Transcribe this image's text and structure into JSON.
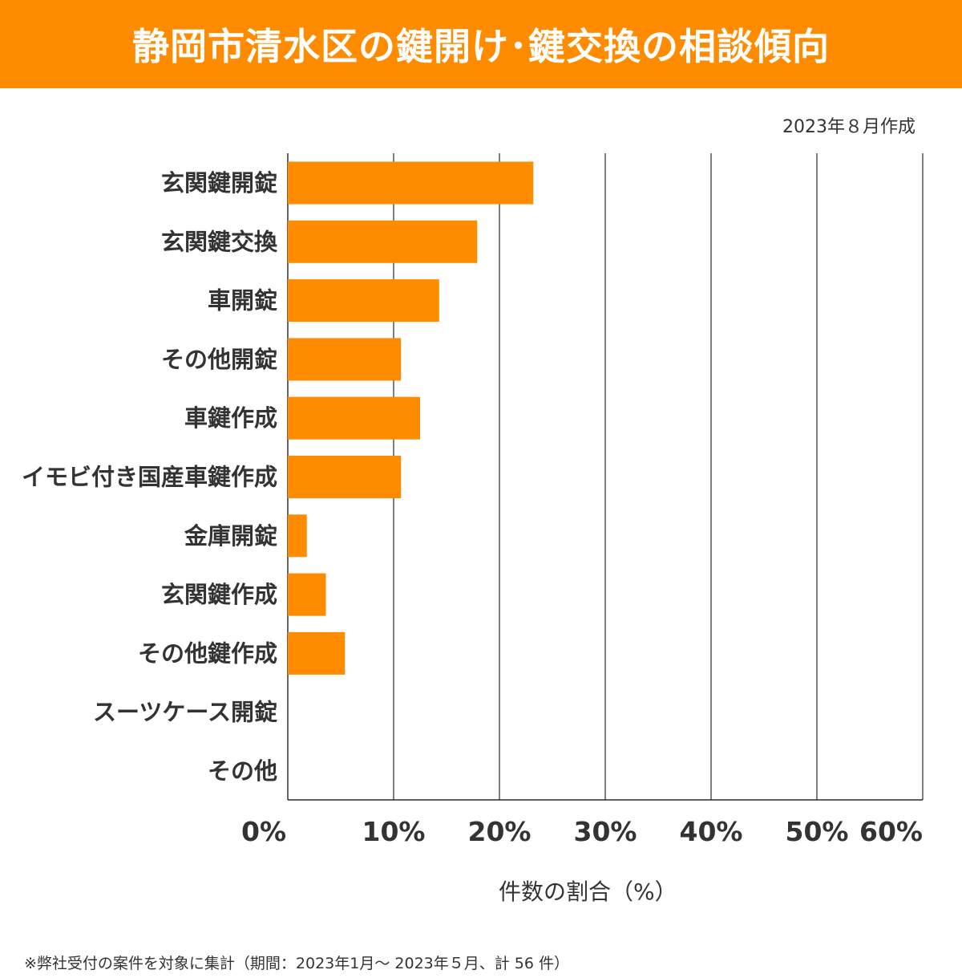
{
  "header": {
    "title": "静岡市清水区の鍵開け･鍵交換の相談傾向",
    "created_note": "2023年８月作成"
  },
  "footnote": "※弊社受付の案件を対象に集計（期間：2023年1月～ 2023年５月、計 56 件）",
  "colors": {
    "bar": "#ff8c00",
    "header_bg": "#ff8c00",
    "header_text": "#ffffff",
    "text": "#333333",
    "grid": "#000000"
  },
  "chart_data": {
    "type": "bar",
    "orientation": "horizontal",
    "title": "静岡市清水区の鍵開け･鍵交換の相談傾向",
    "xlabel": "件数の割合（%）",
    "ylabel": "",
    "xlim": [
      0,
      60
    ],
    "xticks": [
      0,
      10,
      20,
      30,
      40,
      50,
      60
    ],
    "xtick_labels": [
      "0%",
      "10%",
      "20%",
      "30%",
      "40%",
      "50%",
      "60%"
    ],
    "grid": true,
    "categories": [
      "玄関鍵開錠",
      "玄関鍵交換",
      "車開錠",
      "その他開錠",
      "車鍵作成",
      "イモビ付き国産車鍵作成",
      "金庫開錠",
      "玄関鍵作成",
      "その他鍵作成",
      "スーツケース開錠",
      "その他"
    ],
    "values": [
      23.2,
      17.9,
      14.3,
      10.7,
      12.5,
      10.7,
      1.8,
      3.6,
      5.4,
      0,
      0
    ]
  }
}
